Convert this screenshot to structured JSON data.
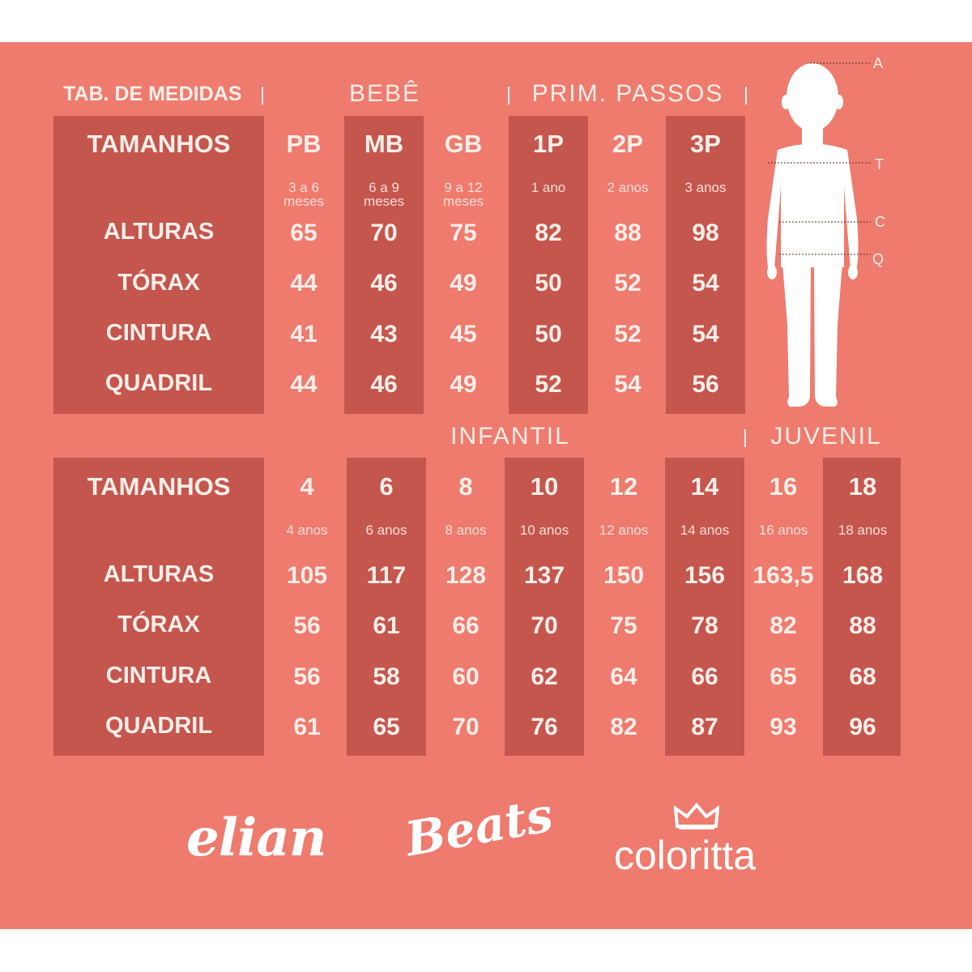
{
  "header": {
    "table_title": "TAB. DE MEDIDAS",
    "section_bebe": "BEBÊ",
    "section_prim": "PRIM. PASSOS",
    "section_infantil": "INFANTIL",
    "section_juvenil": "JUVENIL"
  },
  "row_labels": {
    "sizes": "TAMANHOS",
    "heights": "ALTURAS",
    "chest": "TÓRAX",
    "waist": "CINTURA",
    "hip": "QUADRIL"
  },
  "table1": {
    "columns": [
      {
        "size": "PB",
        "age": "3 a 6 meses",
        "height": "65",
        "chest": "44",
        "waist": "41",
        "hip": "44"
      },
      {
        "size": "MB",
        "age": "6 a 9 meses",
        "height": "70",
        "chest": "46",
        "waist": "43",
        "hip": "46"
      },
      {
        "size": "GB",
        "age": "9 a 12 meses",
        "height": "75",
        "chest": "49",
        "waist": "45",
        "hip": "49"
      },
      {
        "size": "1P",
        "age": "1 ano",
        "height": "82",
        "chest": "50",
        "waist": "50",
        "hip": "52"
      },
      {
        "size": "2P",
        "age": "2 anos",
        "height": "88",
        "chest": "52",
        "waist": "52",
        "hip": "54"
      },
      {
        "size": "3P",
        "age": "3 anos",
        "height": "98",
        "chest": "54",
        "waist": "54",
        "hip": "56"
      }
    ]
  },
  "table2": {
    "columns": [
      {
        "size": "4",
        "age": "4 anos",
        "height": "105",
        "chest": "56",
        "waist": "56",
        "hip": "61"
      },
      {
        "size": "6",
        "age": "6 anos",
        "height": "117",
        "chest": "61",
        "waist": "58",
        "hip": "65"
      },
      {
        "size": "8",
        "age": "8 anos",
        "height": "128",
        "chest": "66",
        "waist": "60",
        "hip": "70"
      },
      {
        "size": "10",
        "age": "10 anos",
        "height": "137",
        "chest": "70",
        "waist": "62",
        "hip": "76"
      },
      {
        "size": "12",
        "age": "12 anos",
        "height": "150",
        "chest": "75",
        "waist": "64",
        "hip": "82"
      },
      {
        "size": "14",
        "age": "14 anos",
        "height": "156",
        "chest": "78",
        "waist": "66",
        "hip": "87"
      },
      {
        "size": "16",
        "age": "16 anos",
        "height": "163,5",
        "chest": "82",
        "waist": "65",
        "hip": "93"
      },
      {
        "size": "18",
        "age": "18 anos",
        "height": "168",
        "chest": "88",
        "waist": "68",
        "hip": "96"
      }
    ]
  },
  "figure_markers": [
    "A",
    "T",
    "C",
    "Q"
  ],
  "logos": {
    "elian": "elian",
    "beats": "Beats",
    "coloritta": "coloritta"
  },
  "colors": {
    "background": "#ee7b6e",
    "band": "#c5564d",
    "text": "#fbeee9"
  }
}
